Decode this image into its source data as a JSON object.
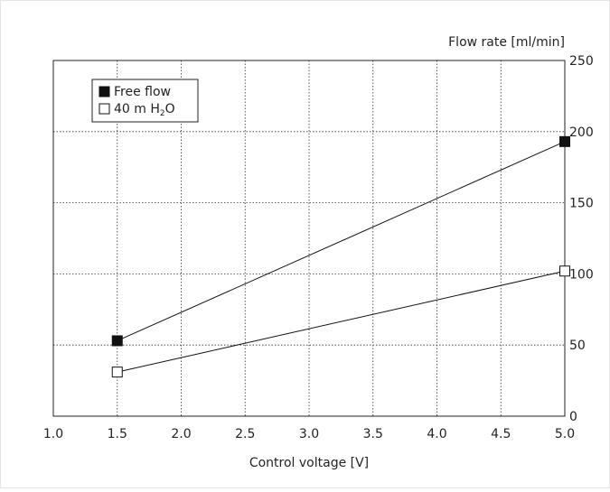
{
  "chart_data": {
    "type": "line",
    "title": "",
    "xlabel": "Control voltage [V]",
    "ylabel": "Flow rate [ml/min]",
    "xlim": [
      1.0,
      5.0
    ],
    "ylim": [
      0,
      250
    ],
    "x_ticks": [
      1.0,
      1.5,
      2.0,
      2.5,
      3.0,
      3.5,
      4.0,
      4.5,
      5.0
    ],
    "x_tick_labels": [
      "1.0",
      "1.5",
      "2.0",
      "2.5",
      "3.0",
      "3.5",
      "4.0",
      "4.5",
      "5.0"
    ],
    "y_ticks": [
      0,
      50,
      100,
      150,
      200,
      250
    ],
    "y_tick_labels": [
      "0",
      "50",
      "100",
      "150",
      "200",
      "250"
    ],
    "y_axis_side": "right",
    "grid": true,
    "grid_style": "dotted",
    "legend_position": "top-left",
    "series": [
      {
        "name": "Free flow",
        "x": [
          1.5,
          5.0
        ],
        "y": [
          53,
          193
        ],
        "marker": "filled-square",
        "color": "#111111"
      },
      {
        "name": "40 m H2O",
        "x": [
          1.5,
          5.0
        ],
        "y": [
          31,
          102
        ],
        "marker": "open-square",
        "color": "#111111"
      }
    ]
  }
}
